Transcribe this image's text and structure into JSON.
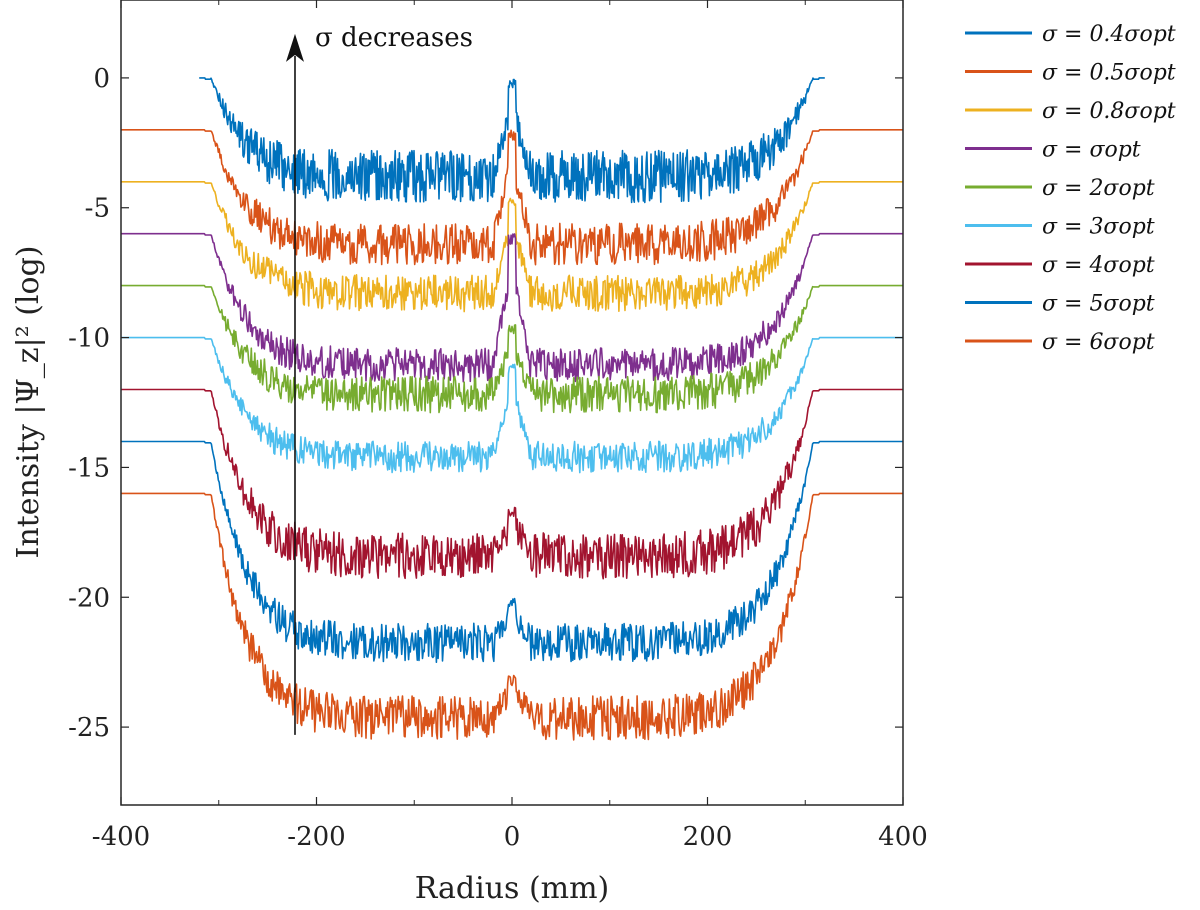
{
  "chart_data": {
    "type": "line",
    "xlabel": "Radius (mm)",
    "ylabel": "Intensity |Ψ_z|² (log)",
    "xlim": [
      -400,
      400
    ],
    "ylim": [
      -28,
      3
    ],
    "xticks": [
      -400,
      -200,
      0,
      200,
      400
    ],
    "xtick_labels": [
      "-400",
      "-200",
      "0",
      "200",
      "400"
    ],
    "yticks": [
      0,
      -5,
      -10,
      -15,
      -20,
      -25
    ],
    "ytick_labels": [
      "0",
      "-5",
      "-10",
      "-15",
      "-20",
      "-25"
    ],
    "grid": false,
    "legend_position": "outside-right",
    "annotation": {
      "text": "σ decreases",
      "x": -222,
      "y_from": -25.3,
      "y_to": 1.0
    },
    "series": [
      {
        "name": "σ = 0.4σopt",
        "color": "#0072BD",
        "offset": 0,
        "edge": 320,
        "step_x": 308,
        "trough": -2.8,
        "noise": 2.0,
        "peak": 0.0
      },
      {
        "name": "σ = 0.5σopt",
        "color": "#D95319",
        "offset": -2,
        "edge": 400,
        "step_x": 308,
        "trough": -5.6,
        "noise": 1.6,
        "peak": -2.0
      },
      {
        "name": "σ = 0.8σopt",
        "color": "#EDB120",
        "offset": -4,
        "edge": 400,
        "step_x": 308,
        "trough": -7.6,
        "noise": 1.4,
        "peak": -4.5
      },
      {
        "name": "σ = σopt",
        "color": "#7E2F8E",
        "offset": -6,
        "edge": 400,
        "step_x": 308,
        "trough": -10.4,
        "noise": 1.3,
        "peak": -6.0
      },
      {
        "name": "σ = 2σopt",
        "color": "#77AC30",
        "offset": -8,
        "edge": 400,
        "step_x": 308,
        "trough": -11.5,
        "noise": 1.4,
        "peak": -9.5
      },
      {
        "name": "σ = 3σopt",
        "color": "#4DBEEE",
        "offset": -10,
        "edge": 400,
        "step_x": 308,
        "trough": -14.0,
        "noise": 1.2,
        "peak": -11.0
      },
      {
        "name": "σ = 4σopt",
        "color": "#A2142F",
        "offset": -12,
        "edge": 400,
        "step_x": 308,
        "trough": -17.5,
        "noise": 1.8,
        "peak": -16.5
      },
      {
        "name": "σ = 5σopt",
        "color": "#0072BD",
        "offset": -14,
        "edge": 400,
        "step_x": 308,
        "trough": -21.0,
        "noise": 1.5,
        "peak": -20.0
      },
      {
        "name": "σ = 6σopt",
        "color": "#D95319",
        "offset": -16,
        "edge": 400,
        "step_x": 308,
        "trough": -23.8,
        "noise": 1.7,
        "peak": -23.0
      }
    ]
  }
}
